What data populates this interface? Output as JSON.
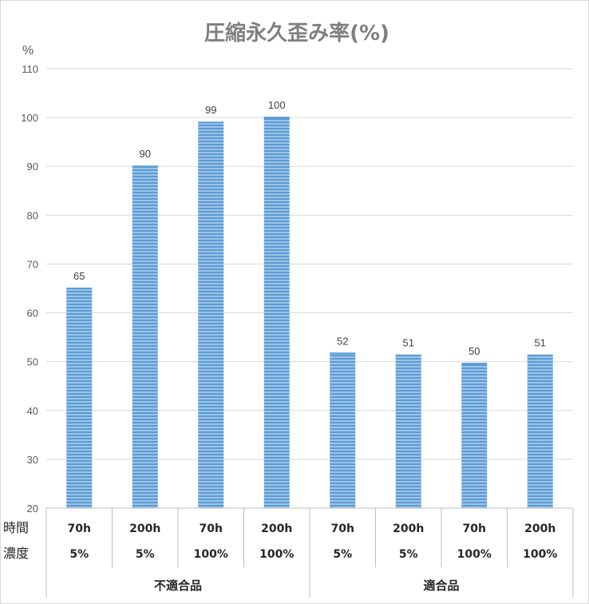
{
  "chart_data": {
    "type": "bar",
    "title": "圧縮永久歪み率(%)",
    "ylabel": "%",
    "ylim": [
      20,
      110
    ],
    "yticks": [
      20,
      30,
      40,
      50,
      60,
      70,
      80,
      90,
      100,
      110
    ],
    "grid": true,
    "legend": "none",
    "bar_color": "#5b9bd5",
    "row_labels": [
      "時間",
      "濃度"
    ],
    "categories": [
      {
        "time": "70h",
        "concentration": "5%",
        "group": "不適合品"
      },
      {
        "time": "200h",
        "concentration": "5%",
        "group": "不適合品"
      },
      {
        "time": "70h",
        "concentration": "100%",
        "group": "不適合品"
      },
      {
        "time": "200h",
        "concentration": "100%",
        "group": "不適合品"
      },
      {
        "time": "70h",
        "concentration": "5%",
        "group": "適合品"
      },
      {
        "time": "200h",
        "concentration": "5%",
        "group": "適合品"
      },
      {
        "time": "70h",
        "concentration": "100%",
        "group": "適合品"
      },
      {
        "time": "200h",
        "concentration": "100%",
        "group": "適合品"
      }
    ],
    "groups": [
      "不適合品",
      "適合品"
    ],
    "values": [
      65,
      90,
      99,
      100,
      51.7,
      51.3,
      49.6,
      51.3
    ],
    "data_labels": [
      "65",
      "90",
      "99",
      "100",
      "52",
      "51",
      "50",
      "51"
    ]
  }
}
